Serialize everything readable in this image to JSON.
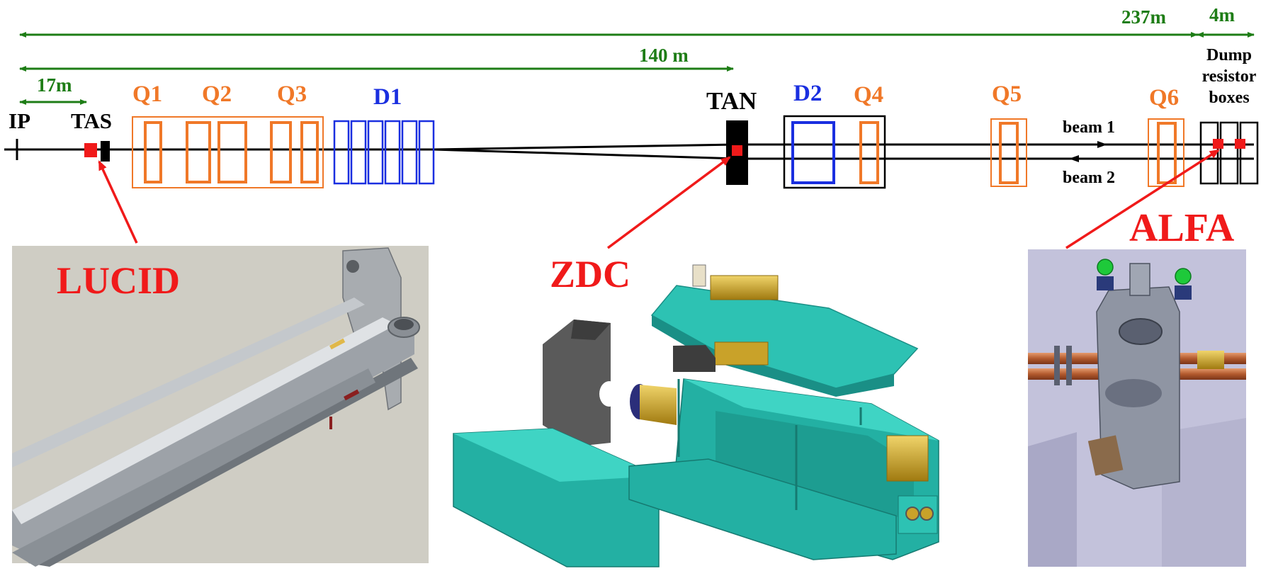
{
  "distances": {
    "d237": "237m",
    "d4": "4m",
    "d140": "140 m",
    "d17": "17m"
  },
  "labels": {
    "ip": "IP",
    "tas": "TAS",
    "q1": "Q1",
    "q2": "Q2",
    "q3": "Q3",
    "d1": "D1",
    "tan": "TAN",
    "d2": "D2",
    "q4": "Q4",
    "q5": "Q5",
    "q6": "Q6",
    "dump1": "Dump",
    "dump2": "resistor",
    "dump3": "boxes",
    "beam1": "beam 1",
    "beam2": "beam 2"
  },
  "detectors": {
    "lucid": "LUCID",
    "zdc": "ZDC",
    "alfa": "ALFA"
  },
  "colors": {
    "green": "#1e7d16",
    "orange": "#f07828",
    "blue": "#1a2fe0",
    "red": "#f01a1a",
    "black": "#000000",
    "teal": "#23b0a3",
    "teal_dark": "#1a8f86",
    "gray_block": "#555555",
    "brass": "#c9a229",
    "copper": "#c0673a"
  }
}
